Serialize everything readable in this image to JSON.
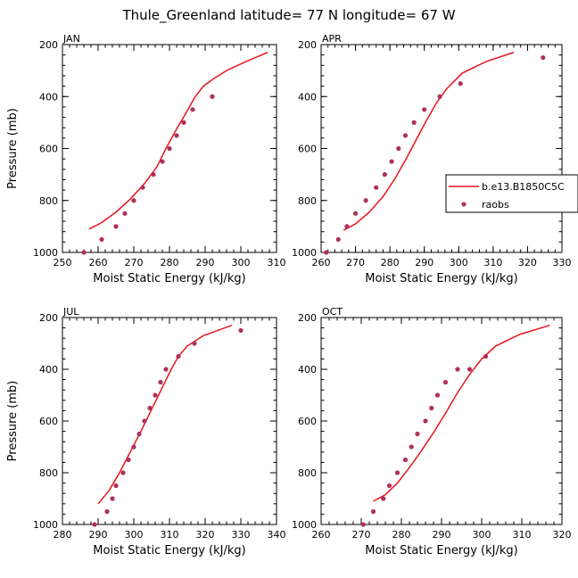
{
  "title": "Thule_Greenland   latitude= 77 N longitude= 67 W",
  "colors": {
    "model": "#e8141c",
    "obs": "#b0305a",
    "axis": "#000000"
  },
  "legend": {
    "model_label": "b.e13.B1850C5C",
    "obs_label": "raobs"
  },
  "chart_data": [
    {
      "type": "line",
      "panel": "JAN",
      "xlabel": "Moist Static Energy (kJ/kg)",
      "ylabel": "Pressure (mb)",
      "xlim": [
        250,
        310
      ],
      "ylim": [
        200,
        1000
      ],
      "y_inverted": true,
      "xticks": [
        250,
        260,
        270,
        280,
        290,
        300,
        310
      ],
      "yticks": [
        200,
        400,
        600,
        800,
        1000
      ],
      "series": [
        {
          "name": "b.e13.B1850C5C",
          "kind": "line",
          "x": [
            257.5,
            261,
            265,
            269,
            273,
            276.5,
            279,
            282,
            285,
            287,
            289.5,
            292.5,
            296,
            301.5,
            307.5
          ],
          "y": [
            910,
            885,
            845,
            795,
            735,
            670,
            600,
            525,
            455,
            405,
            360,
            330,
            300,
            265,
            230
          ]
        },
        {
          "name": "raobs",
          "kind": "scatter",
          "x": [
            256,
            261,
            265,
            267.5,
            270,
            272.5,
            275.5,
            278,
            280,
            282,
            284,
            286.5,
            292
          ],
          "y": [
            1000,
            950,
            900,
            850,
            800,
            750,
            700,
            650,
            600,
            550,
            500,
            450,
            400
          ]
        }
      ]
    },
    {
      "type": "line",
      "panel": "APR",
      "xlabel": "Moist Static Energy (kJ/kg)",
      "ylabel": "",
      "xlim": [
        260,
        330
      ],
      "ylim": [
        200,
        1000
      ],
      "y_inverted": true,
      "xticks": [
        260,
        270,
        280,
        290,
        300,
        310,
        320,
        330
      ],
      "yticks": [
        200,
        400,
        600,
        800,
        1000
      ],
      "series": [
        {
          "name": "b.e13.B1850C5C",
          "kind": "line",
          "x": [
            266.5,
            270,
            274,
            278,
            281.5,
            284.5,
            287.5,
            290.5,
            293.5,
            296.5,
            301,
            308,
            316
          ],
          "y": [
            915,
            890,
            845,
            785,
            715,
            645,
            570,
            495,
            425,
            370,
            310,
            265,
            230
          ]
        },
        {
          "name": "raobs",
          "kind": "scatter",
          "x": [
            261.5,
            265,
            267.5,
            270,
            273,
            276,
            278.5,
            280.5,
            282.5,
            284.5,
            287,
            290,
            294.5,
            300.5,
            324.5
          ],
          "y": [
            1000,
            950,
            900,
            850,
            800,
            750,
            700,
            650,
            600,
            550,
            500,
            450,
            400,
            350,
            250
          ]
        }
      ]
    },
    {
      "type": "line",
      "panel": "JUL",
      "xlabel": "Moist Static Energy (kJ/kg)",
      "ylabel": "Pressure (mb)",
      "xlim": [
        280,
        340
      ],
      "ylim": [
        200,
        1000
      ],
      "y_inverted": true,
      "xticks": [
        280,
        290,
        300,
        310,
        320,
        330,
        340
      ],
      "yticks": [
        200,
        400,
        600,
        800,
        1000
      ],
      "series": [
        {
          "name": "b.e13.B1850C5C",
          "kind": "line",
          "x": [
            290,
            293,
            296,
            299,
            302,
            305,
            308,
            310.5,
            312.5,
            315,
            319.5,
            327.5
          ],
          "y": [
            920,
            870,
            800,
            720,
            640,
            555,
            470,
            400,
            350,
            310,
            270,
            230
          ]
        },
        {
          "name": "raobs",
          "kind": "scatter",
          "x": [
            289,
            292.5,
            294,
            295,
            297,
            298.5,
            300,
            301.5,
            303,
            304.5,
            306,
            307.5,
            309,
            312.5,
            317,
            330
          ],
          "y": [
            1000,
            950,
            900,
            850,
            800,
            750,
            700,
            650,
            600,
            550,
            500,
            450,
            400,
            350,
            300,
            250
          ]
        }
      ]
    },
    {
      "type": "line",
      "panel": "OCT",
      "xlabel": "Moist Static Energy (kJ/kg)",
      "ylabel": "",
      "xlim": [
        260,
        320
      ],
      "ylim": [
        200,
        1000
      ],
      "y_inverted": true,
      "xticks": [
        260,
        270,
        280,
        290,
        300,
        310,
        320
      ],
      "yticks": [
        200,
        400,
        600,
        800,
        1000
      ],
      "series": [
        {
          "name": "b.e13.B1850C5C",
          "kind": "line",
          "x": [
            273,
            276,
            279,
            282,
            285,
            288,
            291,
            294,
            297,
            300,
            303.5,
            309.5,
            317
          ],
          "y": [
            910,
            885,
            840,
            780,
            715,
            645,
            570,
            490,
            420,
            360,
            310,
            265,
            230
          ]
        },
        {
          "name": "raobs",
          "kind": "scatter",
          "x": [
            270.5,
            273,
            275.5,
            277,
            279,
            281,
            282.5,
            284,
            286,
            287.5,
            289,
            291,
            294,
            297,
            301
          ],
          "y": [
            1000,
            950,
            900,
            850,
            800,
            750,
            700,
            650,
            600,
            550,
            500,
            450,
            400,
            400,
            350
          ]
        }
      ]
    }
  ]
}
